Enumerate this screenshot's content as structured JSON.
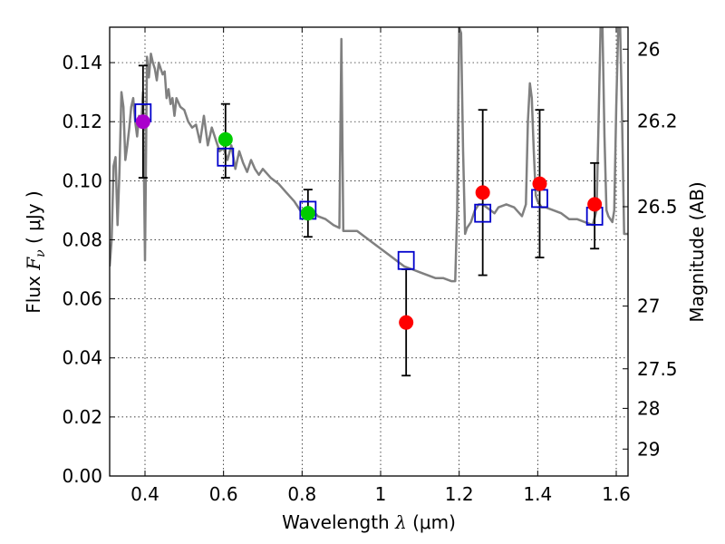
{
  "chart_data": {
    "type": "scatter",
    "title": "",
    "xlabel": "Wavelength  λ (μm)",
    "xlabel_parts": {
      "prefix": "Wavelength  ",
      "symbol": "λ",
      "unit": " (μm)"
    },
    "ylabel": "Flux  Fν  ( μJy )",
    "ylabel_parts": {
      "prefix": "Flux  ",
      "symbol": "F",
      "subscript": "ν",
      "unit": "  ( μJy )"
    },
    "y2label": "Magnitude (AB)",
    "xlim": [
      0.31,
      1.63
    ],
    "ylim": [
      0.0,
      0.152
    ],
    "grid": true,
    "x_ticks": [
      {
        "value": 0.4,
        "label": "0.4"
      },
      {
        "value": 0.6,
        "label": "0.6"
      },
      {
        "value": 0.8,
        "label": "0.8"
      },
      {
        "value": 1.0,
        "label": "1"
      },
      {
        "value": 1.2,
        "label": "1.2"
      },
      {
        "value": 1.4,
        "label": "1.4"
      },
      {
        "value": 1.6,
        "label": "1.6"
      }
    ],
    "y_ticks": [
      {
        "value": 0.0,
        "label": "0.00"
      },
      {
        "value": 0.02,
        "label": "0.02"
      },
      {
        "value": 0.04,
        "label": "0.04"
      },
      {
        "value": 0.06,
        "label": "0.06"
      },
      {
        "value": 0.08,
        "label": "0.08"
      },
      {
        "value": 0.1,
        "label": "0.10"
      },
      {
        "value": 0.12,
        "label": "0.12"
      },
      {
        "value": 0.14,
        "label": "0.14"
      }
    ],
    "y2_ticks": [
      {
        "mag": 26,
        "label": "26"
      },
      {
        "mag": 26.2,
        "label": "26.2"
      },
      {
        "mag": 26.5,
        "label": "26.5"
      },
      {
        "mag": 27,
        "label": "27"
      },
      {
        "mag": 27.5,
        "label": "27.5"
      },
      {
        "mag": 28,
        "label": "28"
      },
      {
        "mag": 29,
        "label": "29"
      }
    ],
    "mag_zero_point_uJy": 3631000000,
    "observed": [
      {
        "x": 0.395,
        "y": 0.12,
        "yerr": [
          0.101,
          0.139
        ],
        "color": "#aa00cc"
      },
      {
        "x": 0.605,
        "y": 0.114,
        "yerr": [
          0.101,
          0.126
        ],
        "color": "#00cc00"
      },
      {
        "x": 0.815,
        "y": 0.089,
        "yerr": [
          0.081,
          0.097
        ],
        "color": "#00cc00"
      },
      {
        "x": 1.065,
        "y": 0.052,
        "yerr": [
          0.034,
          0.07
        ],
        "color": "#ff0000"
      },
      {
        "x": 1.26,
        "y": 0.096,
        "yerr": [
          0.068,
          0.124
        ],
        "color": "#ff0000"
      },
      {
        "x": 1.405,
        "y": 0.099,
        "yerr": [
          0.074,
          0.124
        ],
        "color": "#ff0000"
      },
      {
        "x": 1.545,
        "y": 0.092,
        "yerr": [
          0.077,
          0.106
        ],
        "color": "#ff0000"
      }
    ],
    "model_photometry": [
      {
        "x": 0.395,
        "y": 0.123
      },
      {
        "x": 0.605,
        "y": 0.108
      },
      {
        "x": 0.815,
        "y": 0.09
      },
      {
        "x": 1.065,
        "y": 0.073
      },
      {
        "x": 1.26,
        "y": 0.089
      },
      {
        "x": 1.405,
        "y": 0.094
      },
      {
        "x": 1.545,
        "y": 0.088
      }
    ],
    "model_color": "#0000cc",
    "sed": {
      "name": "model SED",
      "color": "#808080",
      "x": [
        0.31,
        0.315,
        0.32,
        0.325,
        0.33,
        0.335,
        0.34,
        0.345,
        0.35,
        0.355,
        0.36,
        0.365,
        0.37,
        0.375,
        0.38,
        0.385,
        0.39,
        0.395,
        0.4,
        0.405,
        0.41,
        0.415,
        0.42,
        0.425,
        0.43,
        0.435,
        0.44,
        0.445,
        0.45,
        0.455,
        0.46,
        0.465,
        0.47,
        0.475,
        0.48,
        0.49,
        0.5,
        0.51,
        0.52,
        0.53,
        0.54,
        0.55,
        0.56,
        0.57,
        0.58,
        0.59,
        0.6,
        0.61,
        0.62,
        0.63,
        0.64,
        0.65,
        0.66,
        0.67,
        0.68,
        0.69,
        0.7,
        0.72,
        0.74,
        0.76,
        0.78,
        0.8,
        0.82,
        0.84,
        0.86,
        0.88,
        0.895,
        0.9,
        0.905,
        0.92,
        0.94,
        0.96,
        0.98,
        1.0,
        1.02,
        1.04,
        1.06,
        1.08,
        1.1,
        1.12,
        1.14,
        1.16,
        1.18,
        1.19,
        1.195,
        1.198,
        1.2,
        1.205,
        1.21,
        1.215,
        1.22,
        1.23,
        1.24,
        1.25,
        1.26,
        1.27,
        1.28,
        1.29,
        1.3,
        1.32,
        1.34,
        1.36,
        1.37,
        1.375,
        1.38,
        1.385,
        1.39,
        1.395,
        1.4,
        1.41,
        1.42,
        1.44,
        1.46,
        1.48,
        1.5,
        1.52,
        1.54,
        1.55,
        1.555,
        1.56,
        1.565,
        1.57,
        1.575,
        1.58,
        1.585,
        1.59,
        1.595,
        1.6,
        1.605,
        1.61,
        1.615,
        1.62,
        1.63
      ],
      "y": [
        0.071,
        0.08,
        0.105,
        0.108,
        0.085,
        0.103,
        0.13,
        0.125,
        0.107,
        0.112,
        0.118,
        0.125,
        0.128,
        0.12,
        0.115,
        0.122,
        0.118,
        0.13,
        0.073,
        0.142,
        0.135,
        0.143,
        0.14,
        0.138,
        0.134,
        0.14,
        0.138,
        0.136,
        0.137,
        0.128,
        0.131,
        0.126,
        0.128,
        0.122,
        0.128,
        0.125,
        0.124,
        0.12,
        0.118,
        0.119,
        0.113,
        0.122,
        0.112,
        0.118,
        0.114,
        0.11,
        0.111,
        0.107,
        0.112,
        0.104,
        0.11,
        0.106,
        0.103,
        0.107,
        0.104,
        0.102,
        0.104,
        0.101,
        0.099,
        0.096,
        0.093,
        0.089,
        0.091,
        0.088,
        0.087,
        0.085,
        0.084,
        0.148,
        0.083,
        0.083,
        0.083,
        0.081,
        0.079,
        0.077,
        0.075,
        0.073,
        0.071,
        0.07,
        0.069,
        0.068,
        0.067,
        0.067,
        0.066,
        0.066,
        0.09,
        0.13,
        0.152,
        0.15,
        0.11,
        0.082,
        0.084,
        0.086,
        0.09,
        0.092,
        0.092,
        0.091,
        0.09,
        0.089,
        0.091,
        0.092,
        0.091,
        0.088,
        0.092,
        0.12,
        0.133,
        0.128,
        0.11,
        0.095,
        0.093,
        0.091,
        0.091,
        0.09,
        0.089,
        0.087,
        0.087,
        0.086,
        0.085,
        0.09,
        0.12,
        0.152,
        0.152,
        0.115,
        0.09,
        0.088,
        0.087,
        0.086,
        0.09,
        0.125,
        0.152,
        0.152,
        0.12,
        0.082,
        0.082
      ]
    }
  }
}
